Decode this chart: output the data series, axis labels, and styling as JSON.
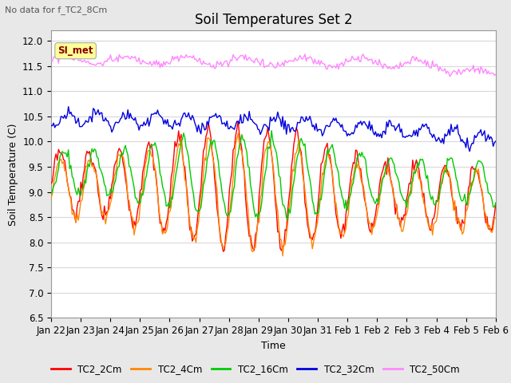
{
  "title": "Soil Temperatures Set 2",
  "xlabel": "Time",
  "ylabel": "Soil Temperature (C)",
  "subtitle": "No data for f_TC2_8Cm",
  "ylim": [
    6.5,
    12.2
  ],
  "xlim": [
    0,
    15
  ],
  "yticks": [
    6.5,
    7.0,
    7.5,
    8.0,
    8.5,
    9.0,
    9.5,
    10.0,
    10.5,
    11.0,
    11.5,
    12.0
  ],
  "xtick_labels": [
    "Jan 22",
    "Jan 23",
    "Jan 24",
    "Jan 25",
    "Jan 26",
    "Jan 27",
    "Jan 28",
    "Jan 29",
    "Jan 30",
    "Jan 31",
    "Feb 1",
    "Feb 2",
    "Feb 3",
    "Feb 4",
    "Feb 5",
    "Feb 6"
  ],
  "legend_entries": [
    "TC2_2Cm",
    "TC2_4Cm",
    "TC2_16Cm",
    "TC2_32Cm",
    "TC2_50Cm"
  ],
  "line_colors": [
    "#ff0000",
    "#ff8800",
    "#00cc00",
    "#0000dd",
    "#ff88ff"
  ],
  "si_met_label": "SI_met",
  "si_met_color": "#880000",
  "si_met_bg": "#ffff99",
  "background_color": "#e8e8e8",
  "plot_bg_color": "#ffffff",
  "grid_color": "#d8d8d8",
  "title_fontsize": 12,
  "axis_fontsize": 9,
  "tick_fontsize": 8.5
}
